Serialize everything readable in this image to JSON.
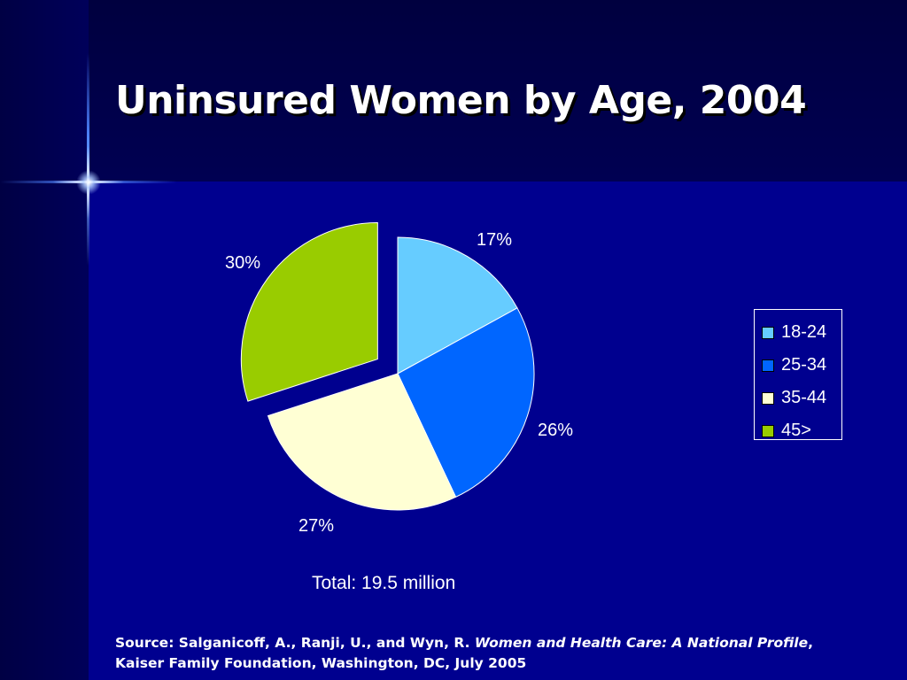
{
  "slide": {
    "title": "Uninsured Women by Age, 2004",
    "total": "Total: 19.5 million",
    "source": {
      "prefix": "Source: Salganicoff, A., Ranji, U., and Wyn, R. ",
      "italic": "Women and Health Care: A National Profile",
      "suffix": ", Kaiser Family Foundation, Washington, DC, July 2005"
    }
  },
  "colors": {
    "background": "#00008f",
    "title_band": "#000052",
    "text": "#ffffff"
  },
  "chart_data": {
    "type": "pie",
    "title": "",
    "categories": [
      "18-24",
      "25-34",
      "35-44",
      "45>"
    ],
    "values": [
      17,
      26,
      27,
      30
    ],
    "labels": [
      "17%",
      "26%",
      "27%",
      "30%"
    ],
    "colors": [
      "#66ccff",
      "#0066ff",
      "#ffffd4",
      "#99cc00"
    ],
    "exploded": [
      "45>"
    ],
    "start": "12 o'clock",
    "direction": "clockwise",
    "legend": {
      "position": "right",
      "items": [
        "18-24",
        "25-34",
        "35-44",
        "45>"
      ]
    }
  }
}
